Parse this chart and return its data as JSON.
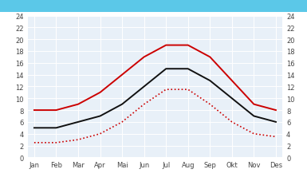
{
  "months": [
    "Jan",
    "Feb",
    "Mar",
    "Apr",
    "Mai",
    "Jun",
    "Jul",
    "Aug",
    "Sep",
    "Okt",
    "Nov",
    "Des"
  ],
  "red_solid": [
    8,
    8,
    9,
    11,
    14,
    17,
    19,
    19,
    17,
    13,
    9,
    8
  ],
  "black_solid": [
    5,
    5,
    6,
    7,
    9,
    12,
    15,
    15,
    13,
    10,
    7,
    6
  ],
  "red_dotted": [
    2.5,
    2.5,
    3,
    4,
    6,
    9,
    11.5,
    11.5,
    9,
    6,
    4,
    3.5
  ],
  "red_solid_color": "#cc0000",
  "black_solid_color": "#111111",
  "red_dotted_color": "#cc0000",
  "figure_bg_color": "#ffffff",
  "plot_bg_color": "#e8f0f8",
  "top_bar_color": "#5bc8e8",
  "grid_color": "#ffffff",
  "ylim": [
    0,
    24
  ],
  "yticks": [
    0,
    2,
    4,
    6,
    8,
    10,
    12,
    14,
    16,
    18,
    20,
    22,
    24
  ],
  "tick_fontsize": 6.0,
  "tick_color": "#444444"
}
